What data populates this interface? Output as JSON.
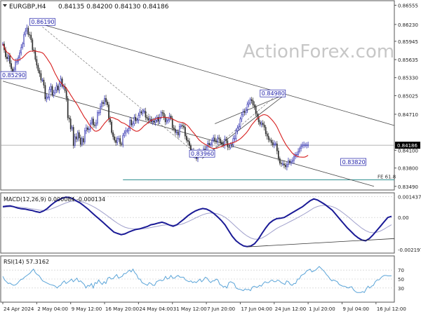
{
  "header": {
    "symbol": "EURGBP,H4",
    "ohlc": "0.84135 0.84200 0.84130 0.84186",
    "watermark": "ActionForex.com",
    "icon": "chevron-down-icon"
  },
  "colors": {
    "bull": "#1c1ca8",
    "bear": "#2c2c2c",
    "ma": "#d71f1f",
    "channel": "#4a4a4a",
    "fib_line": "#2f8f8f",
    "macd": "#1a1a96",
    "macd_signal": "#a0a0cc",
    "rsi": "#5aa4d8",
    "grid": "#c8c8c8"
  },
  "chart_data": [
    {
      "type": "candlestick",
      "title": "EURGBP,H4",
      "ylim": [
        0.8344,
        0.8662
      ],
      "y_ticks": [
        "0.86555",
        "0.86230",
        "0.85945",
        "0.85635",
        "0.85330",
        "0.85025",
        "0.84710",
        "0.84100",
        "0.83800",
        "0.83490"
      ],
      "y_tick_values": [
        0.86555,
        0.8623,
        0.85945,
        0.85635,
        0.8533,
        0.85025,
        0.8471,
        0.841,
        0.838,
        0.8349
      ],
      "current_price": "0.84186",
      "current_value": 0.84186,
      "x_ticks": [
        "24 Apr 2024",
        "2 May 04:00",
        "9 May 12:00",
        "16 May 20:00",
        "24 May 04:00",
        "31 May 12:00",
        "7 Jun 20:00",
        "17 Jun 04:00",
        "24 Jun 12:00",
        "1 Jul 20:00",
        "9 Jul 04:00",
        "16 Jul 12:00"
      ],
      "x_tick_index": [
        0,
        24,
        48,
        72,
        96,
        120,
        144,
        168,
        192,
        216,
        240,
        264
      ],
      "bars": 276,
      "close": [
        0.859,
        0.858,
        0.8568,
        0.8565,
        0.857,
        0.8557,
        0.8548,
        0.854,
        0.8547,
        0.856,
        0.856,
        0.8567,
        0.8575,
        0.8584,
        0.859,
        0.8606,
        0.8612,
        0.8617,
        0.8606,
        0.8605,
        0.8597,
        0.858,
        0.8579,
        0.8564,
        0.8554,
        0.8545,
        0.854,
        0.8529,
        0.8529,
        0.852,
        0.8497,
        0.85,
        0.85,
        0.8513,
        0.8518,
        0.8504,
        0.8508,
        0.8512,
        0.8519,
        0.8512,
        0.8522,
        0.8531,
        0.8518,
        0.8518,
        0.8511,
        0.8498,
        0.8465,
        0.8463,
        0.8446,
        0.8449,
        0.8418,
        0.8433,
        0.8429,
        0.844,
        0.8431,
        0.842,
        0.843,
        0.8424,
        0.8443,
        0.8448,
        0.8445,
        0.8446,
        0.8456,
        0.8463,
        0.8453,
        0.8452,
        0.8456,
        0.8474,
        0.8474,
        0.8484,
        0.8491,
        0.8489,
        0.8498,
        0.8492,
        0.8487,
        0.8463,
        0.8458,
        0.844,
        0.8433,
        0.8427,
        0.8423,
        0.843,
        0.843,
        0.8421,
        0.842,
        0.8435,
        0.8439,
        0.8443,
        0.8443,
        0.8447,
        0.8461,
        0.8453,
        0.8455,
        0.8466,
        0.846,
        0.8461,
        0.8469,
        0.8475,
        0.8473,
        0.8476,
        0.8476,
        0.8466,
        0.8464,
        0.8461,
        0.8463,
        0.8458,
        0.846,
        0.8457,
        0.8461,
        0.8466,
        0.8459,
        0.8466,
        0.8474,
        0.8473,
        0.8465,
        0.8458,
        0.8461,
        0.8462,
        0.8468,
        0.8464,
        0.8448,
        0.8446,
        0.844,
        0.8441,
        0.8436,
        0.845,
        0.8452,
        0.8451,
        0.8449,
        0.8434,
        0.8427,
        0.8425,
        0.8418,
        0.8406,
        0.8409,
        0.8401,
        0.8403,
        0.8396,
        0.8407,
        0.8408,
        0.8406,
        0.8405,
        0.8412,
        0.8409,
        0.8416,
        0.8422,
        0.8419,
        0.842,
        0.8427,
        0.8431,
        0.8426,
        0.8425,
        0.8431,
        0.8429,
        0.8423,
        0.842,
        0.8418,
        0.8429,
        0.8426,
        0.8416,
        0.8415,
        0.842,
        0.8419,
        0.843,
        0.843,
        0.8443,
        0.8448,
        0.845,
        0.8463,
        0.847,
        0.8475,
        0.8474,
        0.8479,
        0.8488,
        0.849,
        0.8496,
        0.8494,
        0.8487,
        0.8484,
        0.8472,
        0.8467,
        0.8458,
        0.8454,
        0.8456,
        0.8453,
        0.8449,
        0.8438,
        0.8434,
        0.8428,
        0.8427,
        0.8423,
        0.8419,
        0.8421,
        0.8421,
        0.8409,
        0.8396,
        0.8388,
        0.8387,
        0.8387,
        0.8385,
        0.8382,
        0.8386,
        0.8392,
        0.8389,
        0.8391,
        0.8393,
        0.8399,
        0.8403,
        0.8403,
        0.8408,
        0.8413,
        0.8417,
        0.8419,
        0.8419,
        0.8419,
        0.8419,
        0.8419
      ],
      "close_unit_note": "H4 closes, read approximately from chart",
      "moving_average_color": "#d71f1f",
      "annotations": [
        {
          "label": "0.86190",
          "value": 0.8619,
          "bar": 28
        },
        {
          "label": "0.85290",
          "value": 0.8529,
          "bar": 0
        },
        {
          "label": "0.84980",
          "value": 0.8498,
          "bar": 191
        },
        {
          "label": "0.83960",
          "value": 0.8396,
          "bar": 141
        },
        {
          "label": "0.83820",
          "value": 0.8382,
          "bar": 248
        }
      ],
      "fib_label": "FE 61.8",
      "fib_value": 0.836
    },
    {
      "type": "line",
      "title": "MACD(12,26,9) 0.000084 -0.000134",
      "ylim": [
        -0.0024,
        0.00165
      ],
      "y_ticks": [
        "0.001437",
        "0.00",
        "-0.002197"
      ],
      "y_tick_values": [
        0.001437,
        0.0,
        -0.002197
      ],
      "series": [
        {
          "name": "MACD",
          "values": [
            0.00075,
            0.00078,
            0.0008,
            0.00074,
            0.00065,
            0.0006,
            0.00058,
            0.00052,
            0.00048,
            0.0004,
            0.00035,
            0.00045,
            0.00062,
            0.00085,
            0.00105,
            0.0012,
            0.00132,
            0.0014,
            0.00138,
            0.00128,
            0.00112,
            0.00098,
            0.00078,
            0.00058,
            0.00035,
            0.00012,
            -0.0001,
            -0.00032,
            -0.00055,
            -0.00078,
            -0.001,
            -0.0011,
            -0.00118,
            -0.00112,
            -0.001,
            -0.0009,
            -0.00082,
            -0.00078,
            -0.0007,
            -0.00062,
            -0.0005,
            -0.00045,
            -0.00038,
            -0.00032,
            -0.0004,
            -0.00052,
            -0.0006,
            -0.0005,
            -0.0003,
            -0.0001,
            0.00012,
            0.0003,
            0.00045,
            0.00055,
            0.00062,
            0.00058,
            0.00045,
            0.00028,
            5e-05,
            -0.0002,
            -0.0005,
            -0.0009,
            -0.0013,
            -0.0016,
            -0.0018,
            -0.00195,
            -0.002,
            -0.00196,
            -0.0018,
            -0.0015,
            -0.0011,
            -0.00072,
            -0.0004,
            -0.0002,
            -8e-05,
            -5e-05,
            0.0,
            0.00015,
            0.0003,
            0.00045,
            0.0006,
            0.00075,
            0.00095,
            0.00115,
            0.00128,
            0.0012,
            0.00105,
            0.0009,
            0.0007,
            0.0005,
            0.0002,
            -0.0001,
            -0.0004,
            -0.0007,
            -0.00095,
            -0.0012,
            -0.0014,
            -0.00155,
            -0.0016,
            -0.00145,
            -0.0012,
            -0.0009,
            -0.0006,
            -0.0003,
            0.0,
            8e-05
          ]
        },
        {
          "name": "Signal",
          "values": [
            0.0007,
            0.00072,
            0.00074,
            0.00074,
            0.00072,
            0.0007,
            0.00067,
            0.00063,
            0.00059,
            0.00055,
            0.0005,
            0.00048,
            0.00051,
            0.00058,
            0.00068,
            0.00078,
            0.0009,
            0.001,
            0.00108,
            0.00112,
            0.00113,
            0.0011,
            0.00103,
            0.00093,
            0.00081,
            0.00067,
            0.00051,
            0.00034,
            0.00016,
            -3e-05,
            -0.00022,
            -0.0004,
            -0.00055,
            -0.00067,
            -0.00074,
            -0.00078,
            -0.00079,
            -0.00079,
            -0.00077,
            -0.00074,
            -0.00069,
            -0.00064,
            -0.00059,
            -0.00054,
            -0.00051,
            -0.00051,
            -0.00053,
            -0.00052,
            -0.00048,
            -0.0004,
            -0.00029,
            -0.00017,
            -4e-05,
            8e-05,
            0.00019,
            0.00027,
            0.00031,
            0.0003,
            0.00025,
            0.00016,
            2e-05,
            -0.00017,
            -0.0004,
            -0.00064,
            -0.00087,
            -0.00109,
            -0.00127,
            -0.00141,
            -0.00149,
            -0.00149,
            -0.00141,
            -0.00127,
            -0.0011,
            -0.00092,
            -0.00075,
            -0.00061,
            -0.00049,
            -0.00036,
            -0.00023,
            -0.0001,
            4e-05,
            0.00018,
            0.00033,
            0.00049,
            0.00065,
            0.00076,
            0.00082,
            0.00084,
            0.00081,
            0.00075,
            0.00064,
            0.00049,
            0.0003,
            0.0001,
            -0.00011,
            -0.00033,
            -0.00054,
            -0.00074,
            -0.0009,
            -0.00101,
            -0.00105,
            -0.00102,
            -0.00093,
            -0.0008,
            -0.00064,
            -0.0005
          ]
        }
      ]
    },
    {
      "type": "line",
      "title": "RSI(14) 57.3162",
      "ylim": [
        0,
        100
      ],
      "y_ticks": [
        "70",
        "50",
        "30"
      ],
      "y_tick_values": [
        70,
        50,
        30
      ],
      "series": [
        {
          "name": "RSI(14)",
          "values": [
            56,
            48,
            44,
            40,
            41,
            38,
            36,
            37,
            40,
            45,
            49,
            50,
            54,
            57,
            60,
            63,
            68,
            72,
            64,
            60,
            58,
            52,
            46,
            44,
            42,
            40,
            38,
            37,
            36,
            34,
            30,
            34,
            36,
            42,
            46,
            40,
            43,
            46,
            50,
            44,
            48,
            52,
            44,
            46,
            42,
            38,
            30,
            36,
            34,
            40,
            30,
            42,
            40,
            48,
            42,
            38,
            44,
            40,
            52,
            54,
            50,
            51,
            56,
            60,
            52,
            54,
            56,
            62,
            62,
            66,
            70,
            66,
            72,
            64,
            60,
            50,
            50,
            42,
            40,
            38,
            36,
            42,
            40,
            36,
            36,
            44,
            46,
            48,
            46,
            48,
            56,
            50,
            52,
            58,
            52,
            52,
            56,
            58,
            54,
            54,
            54,
            48,
            46,
            44,
            46,
            42,
            44,
            42,
            46,
            50,
            44,
            48,
            54,
            52,
            46,
            42,
            46,
            46,
            50,
            48,
            38,
            36,
            32,
            34,
            30,
            42,
            44,
            42,
            40,
            30,
            28,
            27,
            26,
            24,
            28,
            26,
            27,
            24,
            32,
            34,
            32,
            32,
            36,
            34,
            40,
            44,
            42,
            42,
            46,
            48,
            44,
            44,
            48,
            46,
            42,
            40,
            38,
            46,
            44,
            38,
            36,
            40,
            40,
            50,
            50,
            58,
            60,
            62,
            68,
            70,
            72,
            66,
            68,
            70,
            74,
            78,
            74,
            70,
            66,
            60,
            56,
            50,
            46,
            48,
            46,
            44,
            38,
            36,
            34,
            34,
            32,
            30,
            32,
            33,
            26,
            22,
            20,
            20,
            20,
            22,
            20,
            28,
            34,
            30,
            34,
            36,
            44,
            48,
            48,
            52,
            56,
            58,
            58,
            57,
            57,
            57
          ]
        }
      ]
    }
  ]
}
